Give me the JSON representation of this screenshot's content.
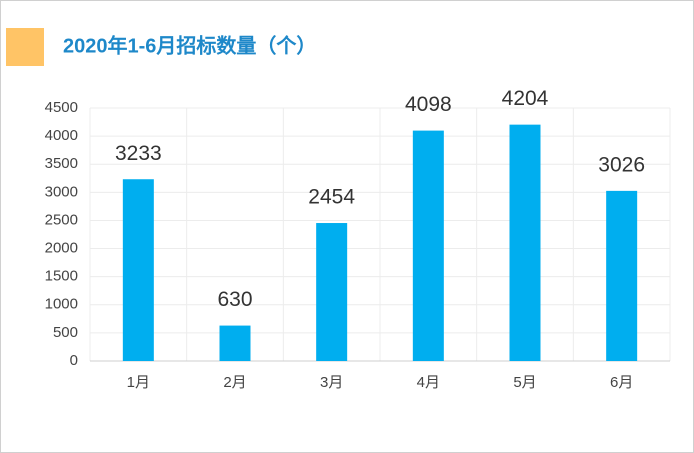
{
  "chart_data": {
    "type": "bar",
    "title": "2020年1-6月招标数量（个）",
    "categories": [
      "1月",
      "2月",
      "3月",
      "4月",
      "5月",
      "6月"
    ],
    "values": [
      3233,
      630,
      2454,
      4098,
      4204,
      3026
    ],
    "color": "#00aeef",
    "ylim": [
      0,
      4500
    ],
    "yticks": [
      0,
      500,
      1000,
      1500,
      2000,
      2500,
      3000,
      3500,
      4000,
      4500
    ],
    "grid": true
  }
}
